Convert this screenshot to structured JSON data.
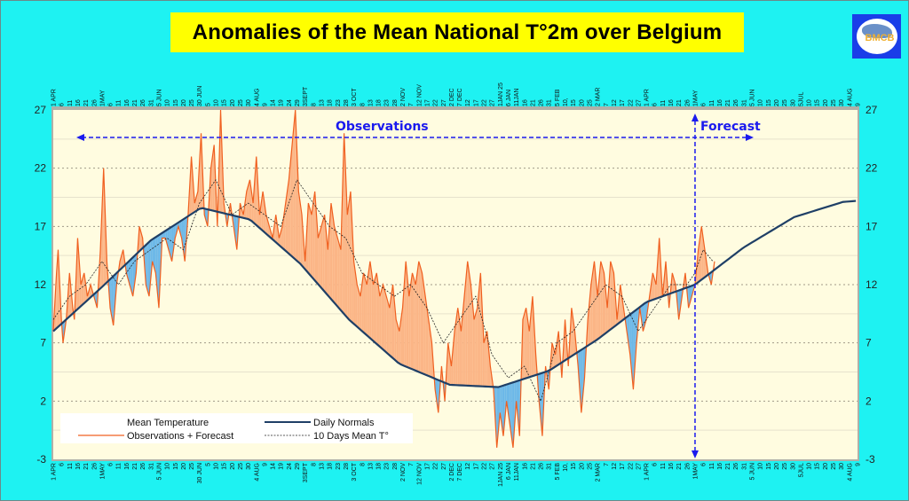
{
  "page": {
    "title": "Anomalies of the Mean National T°2m over Belgium",
    "logo_text": "BMCB"
  },
  "chart_data": {
    "type": "area",
    "title": "Anomalies of the Mean National T°2m over Belgium",
    "xlabel": "",
    "ylabel": "",
    "ylim": [
      -3,
      27
    ],
    "yticks": [
      -3,
      2,
      7,
      12,
      17,
      22,
      27
    ],
    "grid": true,
    "legend_position": "bottom-left",
    "legend": [
      {
        "key": "mean_temperature",
        "label": "Mean Temperature"
      },
      {
        "key": "observations",
        "label": "Observations + Forecast",
        "color": "#f06020"
      },
      {
        "key": "normals",
        "label": "Daily Normals",
        "color": "#1f3f66"
      },
      {
        "key": "ten_day_mean",
        "label": "10 Days Mean T°",
        "color": "#222222"
      }
    ],
    "annotations": {
      "observations": "Observations",
      "forecast": "Forecast",
      "forecast_start_day": 395
    },
    "colors": {
      "above_normal_fill": "#fbb586",
      "below_normal_fill": "#6cb8e8",
      "plot_background": "#fffce0",
      "page_background": "#1ef2f2",
      "title_background": "#ffff00",
      "annotation": "#1a1aee"
    },
    "x_axis": {
      "unit": "day index from 1 APR 2024",
      "range": [
        0,
        495
      ],
      "top_ticks": [
        "1 APR",
        "6",
        "11",
        "16",
        "21",
        "26",
        "1MAY",
        "6",
        "11",
        "16",
        "21",
        "26",
        "31",
        "5 JUN",
        "10",
        "15",
        "20",
        "25",
        "30 JUN",
        "5",
        "10",
        "15",
        "20",
        "25",
        "30",
        "4 AUG",
        "9",
        "14",
        "19",
        "24",
        "29",
        "3SEPT",
        "8",
        "13",
        "18",
        "23",
        "28",
        "3 OCT",
        "8",
        "13",
        "18",
        "23",
        "28",
        "2 NOV",
        "7",
        "12 NOV",
        "17",
        "22",
        "27",
        "2 DEC",
        "7 DEC",
        "12",
        "17",
        "22",
        "27",
        "1JAN 25",
        "6 JAN",
        "11JAN",
        "16",
        "21",
        "26",
        "31",
        "5 FEB",
        "10,",
        "15",
        "20",
        "25",
        "2 MAR",
        "7",
        "12",
        "17",
        "22",
        "27",
        "1 APR",
        "6",
        "11",
        "16",
        "21",
        "26",
        "1MAY",
        "6",
        "11",
        "16",
        "21",
        "26",
        "31",
        "5 JUN",
        "10",
        "15",
        "20",
        "25",
        "30",
        "5JUL",
        "10",
        "15",
        "20",
        "25",
        "30",
        "4 AUG",
        "9"
      ],
      "bottom_ticks": [
        "1 APR",
        "6",
        "11",
        "16",
        "21",
        "26",
        "1MAY",
        "6",
        "11",
        "16",
        "21",
        "26",
        "31",
        "5 JUN",
        "10",
        "15",
        "20",
        "25",
        "30 JUN",
        "5",
        "10",
        "15",
        "20",
        "25",
        "30",
        "4 AUG",
        "9",
        "14",
        "19",
        "24",
        "29",
        "3SEPT",
        "8",
        "13",
        "18",
        "23",
        "28",
        "3 OCT",
        "8",
        "13",
        "18",
        "23",
        "28",
        "2 NOV",
        "7",
        "12 NOV",
        "17",
        "22",
        "27",
        "2 DEC",
        "7 DEC",
        "12",
        "17",
        "22",
        "27",
        "1JAN 25",
        "6 JAN",
        "11JAN",
        "16",
        "21",
        "26",
        "31",
        "5 FEB",
        "10,",
        "15",
        "20",
        "25",
        "2 MAR",
        "7",
        "12",
        "17",
        "22",
        "27",
        "1 APR",
        "6",
        "11",
        "16",
        "21",
        "26",
        "1MAY",
        "6",
        "11",
        "16",
        "21",
        "26",
        "31",
        "5 JUN",
        "10",
        "15",
        "20",
        "25",
        "30",
        "5JUL",
        "10",
        "15",
        "20",
        "25",
        "30",
        "4 AUG",
        "9"
      ]
    },
    "normals": {
      "description": "Daily normals sinusoid",
      "points": [
        [
          0,
          8.0
        ],
        [
          30,
          11.8
        ],
        [
          60,
          15.8
        ],
        [
          91,
          18.6
        ],
        [
          121,
          17.6
        ],
        [
          152,
          13.8
        ],
        [
          182,
          9.0
        ],
        [
          213,
          5.2
        ],
        [
          244,
          3.4
        ],
        [
          274,
          3.2
        ],
        [
          305,
          4.6
        ],
        [
          335,
          7.3
        ],
        [
          365,
          10.5
        ],
        [
          395,
          12.0
        ],
        [
          425,
          15.2
        ],
        [
          456,
          17.8
        ],
        [
          486,
          19.1
        ],
        [
          495,
          19.2
        ]
      ]
    },
    "observations": {
      "description": "Daily mean temperature (observations, forecast after day 395), °C, approx.",
      "points": [
        [
          0,
          8
        ],
        [
          2,
          13
        ],
        [
          3,
          15
        ],
        [
          5,
          9
        ],
        [
          6,
          7
        ],
        [
          8,
          9
        ],
        [
          10,
          13
        ],
        [
          12,
          10
        ],
        [
          13,
          9
        ],
        [
          15,
          16
        ],
        [
          17,
          12
        ],
        [
          19,
          13
        ],
        [
          21,
          11
        ],
        [
          23,
          12
        ],
        [
          25,
          11
        ],
        [
          27,
          10
        ],
        [
          29,
          15
        ],
        [
          31,
          22
        ],
        [
          33,
          14
        ],
        [
          35,
          10
        ],
        [
          37,
          8.5
        ],
        [
          39,
          12
        ],
        [
          41,
          14
        ],
        [
          43,
          15
        ],
        [
          45,
          13
        ],
        [
          47,
          12
        ],
        [
          49,
          11
        ],
        [
          51,
          13
        ],
        [
          53,
          17
        ],
        [
          55,
          16
        ],
        [
          57,
          12
        ],
        [
          59,
          11
        ],
        [
          61,
          14
        ],
        [
          63,
          13
        ],
        [
          65,
          10
        ],
        [
          67,
          16
        ],
        [
          69,
          16
        ],
        [
          71,
          15
        ],
        [
          73,
          14
        ],
        [
          75,
          16
        ],
        [
          77,
          17
        ],
        [
          79,
          16
        ],
        [
          81,
          14
        ],
        [
          83,
          18
        ],
        [
          85,
          23
        ],
        [
          87,
          19
        ],
        [
          89,
          20
        ],
        [
          91,
          25
        ],
        [
          93,
          18
        ],
        [
          95,
          17
        ],
        [
          97,
          22
        ],
        [
          99,
          24
        ],
        [
          101,
          17
        ],
        [
          103,
          27
        ],
        [
          105,
          19
        ],
        [
          107,
          17
        ],
        [
          109,
          19
        ],
        [
          111,
          17
        ],
        [
          113,
          15
        ],
        [
          115,
          19
        ],
        [
          117,
          18
        ],
        [
          119,
          20
        ],
        [
          121,
          21
        ],
        [
          123,
          19
        ],
        [
          125,
          23
        ],
        [
          127,
          18
        ],
        [
          129,
          20
        ],
        [
          131,
          18
        ],
        [
          133,
          17
        ],
        [
          135,
          16
        ],
        [
          137,
          18
        ],
        [
          139,
          16
        ],
        [
          141,
          17
        ],
        [
          143,
          19
        ],
        [
          145,
          21
        ],
        [
          147,
          24
        ],
        [
          149,
          27
        ],
        [
          151,
          20
        ],
        [
          153,
          18
        ],
        [
          155,
          14
        ],
        [
          157,
          19
        ],
        [
          159,
          18
        ],
        [
          161,
          20
        ],
        [
          163,
          16
        ],
        [
          165,
          17
        ],
        [
          167,
          18
        ],
        [
          169,
          15
        ],
        [
          171,
          19
        ],
        [
          173,
          17
        ],
        [
          175,
          16
        ],
        [
          177,
          15
        ],
        [
          179,
          25
        ],
        [
          181,
          18
        ],
        [
          183,
          20
        ],
        [
          185,
          14
        ],
        [
          187,
          12
        ],
        [
          189,
          11
        ],
        [
          191,
          13
        ],
        [
          193,
          12
        ],
        [
          195,
          14
        ],
        [
          197,
          12
        ],
        [
          199,
          13
        ],
        [
          201,
          11
        ],
        [
          203,
          12
        ],
        [
          205,
          11
        ],
        [
          207,
          10
        ],
        [
          209,
          12
        ],
        [
          211,
          9
        ],
        [
          213,
          8
        ],
        [
          215,
          10
        ],
        [
          217,
          14
        ],
        [
          219,
          11
        ],
        [
          221,
          13
        ],
        [
          223,
          12
        ],
        [
          225,
          14
        ],
        [
          227,
          13
        ],
        [
          229,
          11
        ],
        [
          231,
          9
        ],
        [
          233,
          7
        ],
        [
          235,
          3
        ],
        [
          237,
          1
        ],
        [
          239,
          5
        ],
        [
          241,
          2
        ],
        [
          243,
          7
        ],
        [
          245,
          5
        ],
        [
          247,
          8
        ],
        [
          249,
          10
        ],
        [
          251,
          8
        ],
        [
          253,
          11
        ],
        [
          255,
          14
        ],
        [
          257,
          12
        ],
        [
          259,
          9
        ],
        [
          261,
          10
        ],
        [
          263,
          13
        ],
        [
          265,
          7
        ],
        [
          267,
          8
        ],
        [
          269,
          5
        ],
        [
          271,
          3
        ],
        [
          273,
          -2
        ],
        [
          275,
          1
        ],
        [
          277,
          -1
        ],
        [
          279,
          2
        ],
        [
          281,
          0
        ],
        [
          283,
          -2
        ],
        [
          285,
          2
        ],
        [
          287,
          -1
        ],
        [
          289,
          9
        ],
        [
          291,
          10
        ],
        [
          293,
          8
        ],
        [
          295,
          11
        ],
        [
          297,
          6
        ],
        [
          299,
          2
        ],
        [
          301,
          -1
        ],
        [
          303,
          5
        ],
        [
          305,
          3
        ],
        [
          307,
          7
        ],
        [
          309,
          6
        ],
        [
          311,
          8
        ],
        [
          313,
          4
        ],
        [
          315,
          9
        ],
        [
          317,
          5
        ],
        [
          319,
          10
        ],
        [
          321,
          8
        ],
        [
          323,
          5
        ],
        [
          325,
          1
        ],
        [
          327,
          4
        ],
        [
          329,
          9
        ],
        [
          331,
          12
        ],
        [
          333,
          14
        ],
        [
          335,
          11
        ],
        [
          337,
          14
        ],
        [
          339,
          13
        ],
        [
          341,
          10
        ],
        [
          343,
          14
        ],
        [
          345,
          13
        ],
        [
          347,
          9
        ],
        [
          349,
          12
        ],
        [
          351,
          10
        ],
        [
          353,
          8
        ],
        [
          355,
          6
        ],
        [
          357,
          3
        ],
        [
          359,
          7
        ],
        [
          361,
          10
        ],
        [
          363,
          8
        ],
        [
          365,
          9
        ],
        [
          367,
          11
        ],
        [
          369,
          13
        ],
        [
          371,
          12
        ],
        [
          373,
          16
        ],
        [
          375,
          11
        ],
        [
          377,
          14
        ],
        [
          379,
          10
        ],
        [
          381,
          13
        ],
        [
          383,
          12
        ],
        [
          385,
          9
        ],
        [
          387,
          11
        ],
        [
          389,
          13
        ],
        [
          391,
          10
        ],
        [
          393,
          11
        ],
        [
          395,
          12
        ],
        [
          397,
          15
        ],
        [
          399,
          17
        ],
        [
          401,
          15
        ],
        [
          403,
          13
        ],
        [
          405,
          12
        ],
        [
          407,
          14
        ]
      ]
    },
    "ten_day_mean": {
      "description": "10-day running mean, °C, approx.",
      "points": [
        [
          0,
          9
        ],
        [
          10,
          11
        ],
        [
          20,
          12
        ],
        [
          30,
          14
        ],
        [
          40,
          12
        ],
        [
          50,
          14
        ],
        [
          60,
          15
        ],
        [
          70,
          16
        ],
        [
          80,
          15
        ],
        [
          90,
          19
        ],
        [
          100,
          21
        ],
        [
          110,
          18
        ],
        [
          120,
          19
        ],
        [
          130,
          18
        ],
        [
          140,
          17
        ],
        [
          150,
          21
        ],
        [
          160,
          19
        ],
        [
          170,
          17
        ],
        [
          180,
          16
        ],
        [
          190,
          13
        ],
        [
          200,
          12
        ],
        [
          210,
          11
        ],
        [
          220,
          12
        ],
        [
          230,
          10
        ],
        [
          240,
          7
        ],
        [
          250,
          9
        ],
        [
          260,
          11
        ],
        [
          270,
          6
        ],
        [
          280,
          4
        ],
        [
          290,
          5
        ],
        [
          300,
          2
        ],
        [
          310,
          7
        ],
        [
          320,
          8
        ],
        [
          330,
          10
        ],
        [
          340,
          12
        ],
        [
          350,
          11
        ],
        [
          360,
          8
        ],
        [
          370,
          10
        ],
        [
          380,
          12
        ],
        [
          390,
          12
        ],
        [
          395,
          13
        ],
        [
          400,
          15
        ],
        [
          406,
          14
        ]
      ]
    }
  }
}
